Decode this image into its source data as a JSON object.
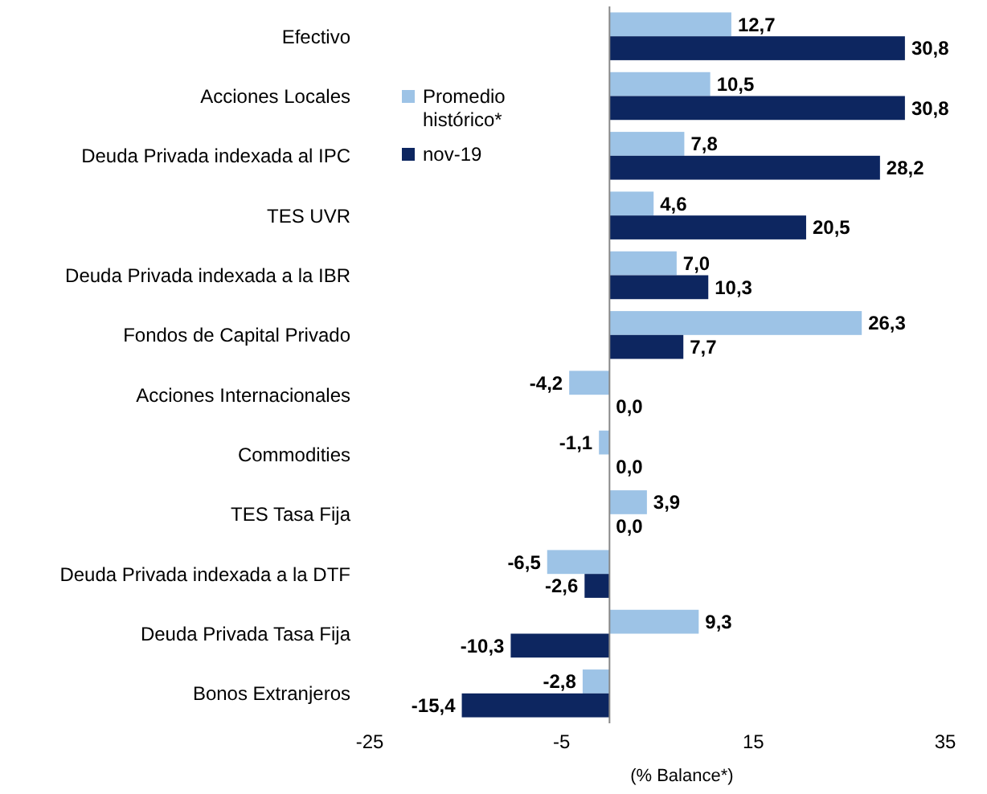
{
  "chart_data": {
    "type": "bar",
    "orientation": "horizontal",
    "xlabel": "(% Balance*)",
    "categories": [
      "Efectivo",
      "Acciones Locales",
      "Deuda Privada indexada al IPC",
      "TES UVR",
      "Deuda Privada indexada a la IBR",
      "Fondos de Capital Privado",
      "Acciones Internacionales",
      "Commodities",
      "TES Tasa Fija",
      "Deuda Privada indexada a la DTF",
      "Deuda Privada Tasa Fija",
      "Bonos Extranjeros"
    ],
    "series": [
      {
        "name": "Promedio histórico*",
        "color": "#9dc3e6",
        "values": [
          12.7,
          10.5,
          7.8,
          4.6,
          7.0,
          26.3,
          -4.2,
          -1.1,
          3.9,
          -6.5,
          9.3,
          -2.8
        ],
        "value_labels": [
          "12,7",
          "10,5",
          "7,8",
          "4,6",
          "7,0",
          "26,3",
          "-4,2",
          "-1,1",
          "3,9",
          "-6,5",
          "9,3",
          "-2,8"
        ]
      },
      {
        "name": "nov-19",
        "color": "#0d2660",
        "values": [
          30.8,
          30.8,
          28.2,
          20.5,
          10.3,
          7.7,
          0.0,
          0.0,
          0.0,
          -2.6,
          -10.3,
          -15.4
        ],
        "value_labels": [
          "30,8",
          "30,8",
          "28,2",
          "20,5",
          "10,3",
          "7,7",
          "0,0",
          "0,0",
          "0,0",
          "-2,6",
          "-10,3",
          "-15,4"
        ]
      }
    ],
    "xlim": [
      -25,
      35
    ],
    "xticks": [
      -25,
      -5,
      15,
      35
    ],
    "grid": false,
    "legend": "top left"
  }
}
